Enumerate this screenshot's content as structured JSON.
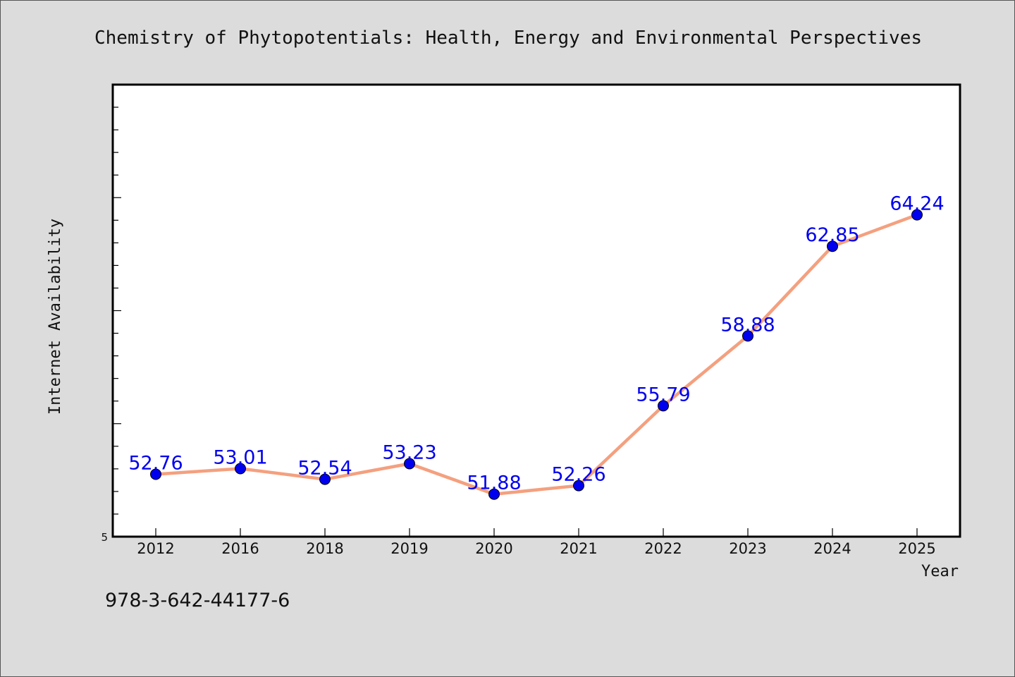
{
  "chart_data": {
    "type": "line",
    "title": "Chemistry of Phytopotentials: Health, Energy and Environmental Perspectives",
    "xlabel": "Year",
    "ylabel": "Internet Availability",
    "categories": [
      "2012",
      "2016",
      "2018",
      "2019",
      "2020",
      "2021",
      "2022",
      "2023",
      "2024",
      "2025"
    ],
    "series": [
      {
        "values": [
          52.76,
          53.01,
          52.54,
          53.23,
          51.88,
          52.26,
          55.79,
          58.88,
          62.85,
          64.24
        ]
      }
    ],
    "value_labels": [
      "52.76",
      "53.01",
      "52.54",
      "53.23",
      "51.88",
      "52.26",
      "55.79",
      "58.88",
      "62.85",
      "64.24"
    ],
    "ylim": [
      50,
      70
    ],
    "y_tick_label": "5",
    "grid": false,
    "legend": "none",
    "colors": {
      "line": "#f4a07f",
      "marker": "#0000ee",
      "value_label": "#0000ee",
      "plot_background": "#ffffff",
      "page_background": "#dcdcdc"
    }
  },
  "footer": {
    "isbn": "978-3-642-44177-6"
  }
}
